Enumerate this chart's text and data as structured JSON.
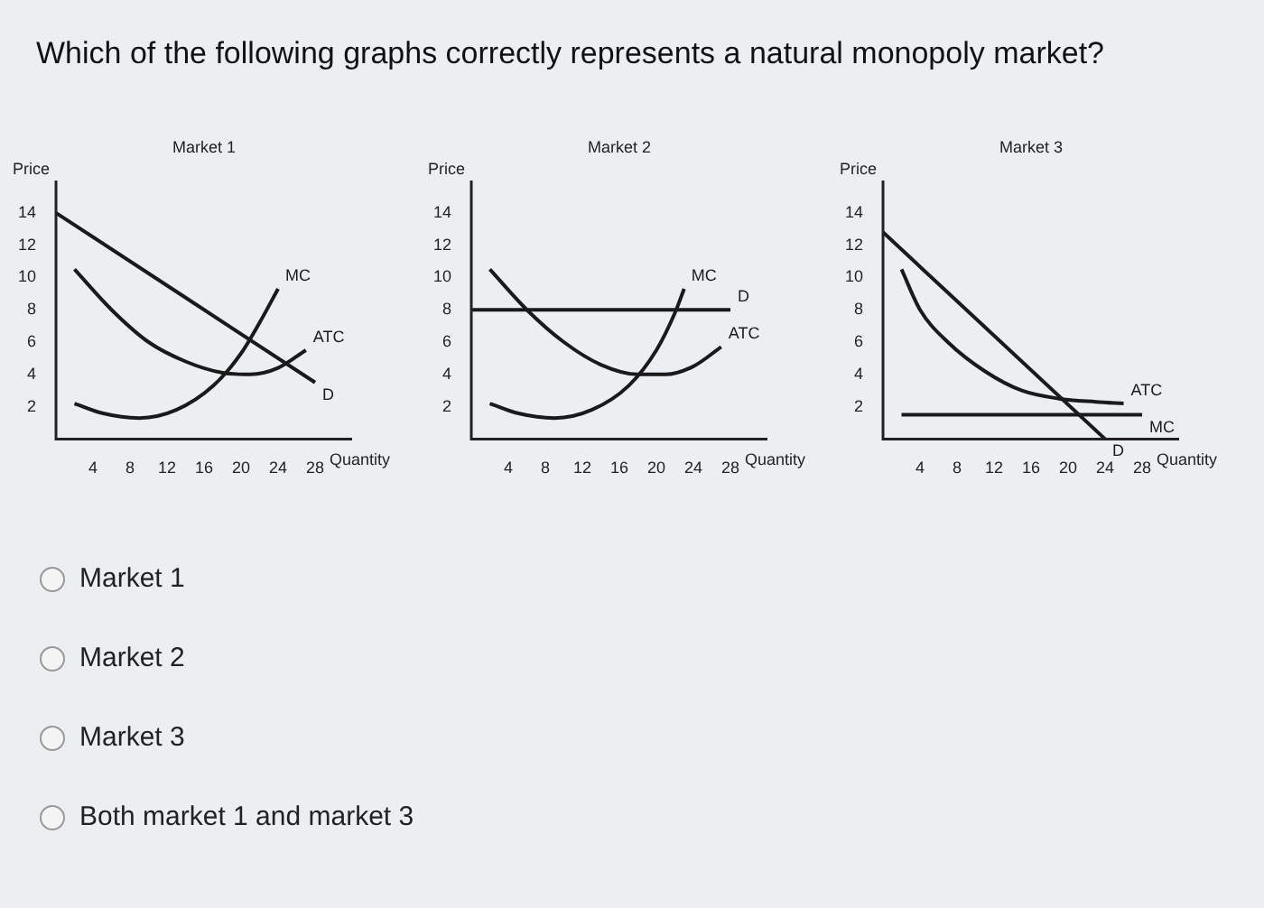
{
  "chart_data": [
    {
      "type": "line",
      "title": "Market 1",
      "xlabel": "Quantity",
      "ylabel": "Price",
      "xlim": [
        0,
        32
      ],
      "ylim": [
        0,
        16
      ],
      "xticks": [
        4,
        8,
        12,
        16,
        20,
        24,
        28
      ],
      "yticks": [
        2,
        4,
        6,
        8,
        10,
        12,
        14
      ],
      "grid": false,
      "legend": false,
      "marker": "none",
      "series": [
        {
          "name": "D",
          "color": "#1a1a1a",
          "x": [
            0,
            28
          ],
          "values": [
            14,
            3.5
          ]
        },
        {
          "name": "MC",
          "color": "#1a1a1a",
          "x": [
            2,
            5,
            9,
            13,
            17,
            20,
            22,
            24
          ],
          "values": [
            2.2,
            1.6,
            1.3,
            1.8,
            3.3,
            5.3,
            7.2,
            9.3
          ]
        },
        {
          "name": "ATC",
          "color": "#1a1a1a",
          "x": [
            2,
            6,
            10,
            14,
            18,
            21,
            24,
            27
          ],
          "values": [
            10.5,
            8,
            6,
            4.8,
            4.1,
            4,
            4.4,
            5.5
          ]
        }
      ]
    },
    {
      "type": "line",
      "title": "Market 2",
      "xlabel": "Quantity",
      "ylabel": "Price",
      "xlim": [
        0,
        32
      ],
      "ylim": [
        0,
        16
      ],
      "xticks": [
        4,
        8,
        12,
        16,
        20,
        24,
        28
      ],
      "yticks": [
        2,
        4,
        6,
        8,
        10,
        12,
        14
      ],
      "grid": false,
      "legend": false,
      "marker": "none",
      "series": [
        {
          "name": "D",
          "color": "#1a1a1a",
          "x": [
            0,
            28
          ],
          "values": [
            8,
            8
          ]
        },
        {
          "name": "MC",
          "color": "#1a1a1a",
          "x": [
            2,
            5,
            9,
            13,
            17,
            20,
            22,
            23
          ],
          "values": [
            2.2,
            1.6,
            1.3,
            1.8,
            3.3,
            5.5,
            7.8,
            9.3
          ]
        },
        {
          "name": "ATC",
          "color": "#1a1a1a",
          "x": [
            2,
            6,
            10,
            14,
            18,
            21,
            24,
            27
          ],
          "values": [
            10.5,
            8,
            6,
            4.6,
            4,
            4,
            4.5,
            5.7
          ]
        }
      ]
    },
    {
      "type": "line",
      "title": "Market 3",
      "xlabel": "Quantity",
      "ylabel": "Price",
      "xlim": [
        0,
        32
      ],
      "ylim": [
        0,
        16
      ],
      "xticks": [
        4,
        8,
        12,
        16,
        20,
        24,
        28
      ],
      "yticks": [
        2,
        4,
        6,
        8,
        10,
        12,
        14
      ],
      "grid": false,
      "legend": false,
      "marker": "none",
      "series": [
        {
          "name": "D",
          "color": "#1a1a1a",
          "x": [
            0,
            24
          ],
          "values": [
            12.8,
            0
          ]
        },
        {
          "name": "ATC",
          "color": "#1a1a1a",
          "x": [
            2,
            4,
            7,
            11,
            15,
            19,
            23,
            26
          ],
          "values": [
            10.5,
            8,
            6,
            4.2,
            3,
            2.5,
            2.3,
            2.2
          ]
        },
        {
          "name": "MC",
          "color": "#1a1a1a",
          "x": [
            2,
            28
          ],
          "values": [
            1.5,
            1.5
          ]
        }
      ]
    },
    {
      "type": "other",
      "title": "Which of the following graphs correctly represents a natural monopoly market?",
      "annotations": [
        "Market 1",
        "Market 2",
        "Market 3",
        "Both market 1 and market 3"
      ]
    }
  ]
}
